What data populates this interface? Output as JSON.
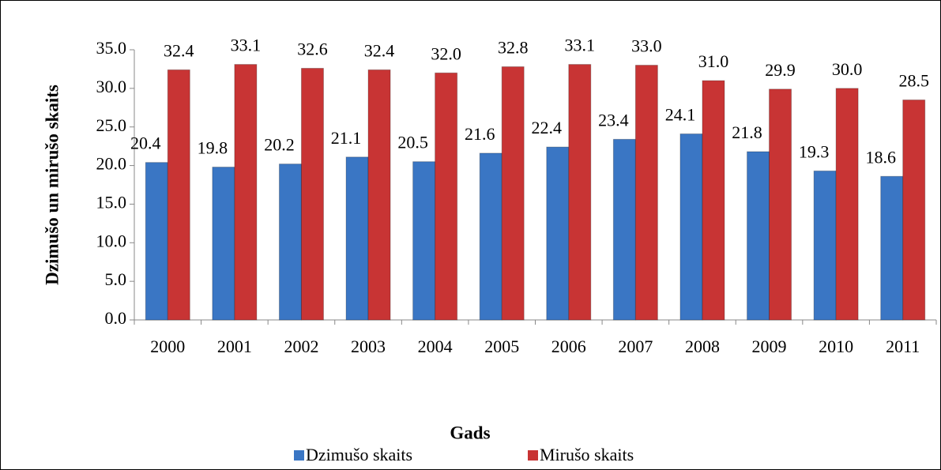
{
  "chart_data": {
    "type": "bar",
    "x_label": "Gads",
    "y_label": "Dzimušo un mirušo skaits",
    "categories": [
      "2000",
      "2001",
      "2002",
      "2003",
      "2004",
      "2005",
      "2006",
      "2007",
      "2008",
      "2009",
      "2010",
      "2011"
    ],
    "series": [
      {
        "name": "Dzimušo skaits",
        "color": "#3a76c4",
        "values": [
          20.4,
          19.8,
          20.2,
          21.1,
          20.5,
          21.6,
          22.4,
          23.4,
          24.1,
          21.8,
          19.3,
          18.6
        ],
        "value_labels": [
          "20.4",
          "19.8",
          "20.2",
          "21.1",
          "20.5",
          "21.6",
          "22.4",
          "23.4",
          "24.1",
          "21.8",
          "19.3",
          "18.6"
        ]
      },
      {
        "name": "Mirušo skaits",
        "color": "#c83434",
        "values": [
          32.4,
          33.1,
          32.6,
          32.4,
          32.0,
          32.8,
          33.1,
          33.0,
          31.0,
          29.9,
          30.0,
          28.5
        ],
        "value_labels": [
          "32.4",
          "33.1",
          "32.6",
          "32.4",
          "32.0",
          "32.8",
          "33.1",
          "33.0",
          "31.0",
          "29.9",
          "30.0",
          "28.5"
        ]
      }
    ],
    "ylim": [
      0,
      35
    ],
    "yticks": [
      {
        "value": 0,
        "label": "0.0"
      },
      {
        "value": 5,
        "label": "5.0"
      },
      {
        "value": 10,
        "label": "10.0"
      },
      {
        "value": 15,
        "label": "15.0"
      },
      {
        "value": 20,
        "label": "20.0"
      },
      {
        "value": 25,
        "label": "25.0"
      },
      {
        "value": 30,
        "label": "30.0"
      },
      {
        "value": 35,
        "label": "35.0"
      }
    ],
    "legend": "bottom"
  }
}
